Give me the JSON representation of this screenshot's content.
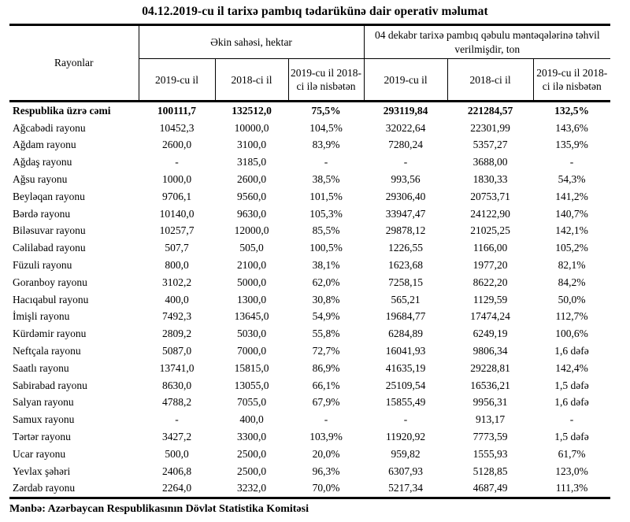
{
  "title": "04.12.2019-cu il tarixə pambıq tədarükünə dair operativ məlumat",
  "source_note": "Mənbə: Azərbaycan Respublikasının Dövlət Statistika Komitəsi",
  "colors": {
    "text": "#000000",
    "background": "#ffffff",
    "border": "#000000"
  },
  "table": {
    "header": {
      "rayonlar": "Rayonlar",
      "group1": "Əkin sahəsi, hektar",
      "group2": "04 dekabr tarixə pambıq qəbulu məntəqələrinə təhvil verilmişdir, ton",
      "sub": [
        "2019-cu il",
        "2018-ci il",
        "2019-cu il 2018-ci ilə nisbətən",
        "2019-cu il",
        "2018-ci il",
        "2019-cu il 2018-ci ilə nisbətən"
      ]
    },
    "rows": [
      {
        "name": "Respublika üzrə cəmi",
        "bold": true,
        "values": [
          "100111,7",
          "132512,0",
          "75,5%",
          "293119,84",
          "221284,57",
          "132,5%"
        ]
      },
      {
        "name": "Ağcabədi rayonu",
        "bold": false,
        "values": [
          "10452,3",
          "10000,0",
          "104,5%",
          "32022,64",
          "22301,99",
          "143,6%"
        ]
      },
      {
        "name": "Ağdam rayonu",
        "bold": false,
        "values": [
          "2600,0",
          "3100,0",
          "83,9%",
          "7280,24",
          "5357,27",
          "135,9%"
        ]
      },
      {
        "name": "Ağdaş rayonu",
        "bold": false,
        "values": [
          "-",
          "3185,0",
          "-",
          "-",
          "3688,00",
          "-"
        ]
      },
      {
        "name": "Ağsu rayonu",
        "bold": false,
        "values": [
          "1000,0",
          "2600,0",
          "38,5%",
          "993,56",
          "1830,33",
          "54,3%"
        ]
      },
      {
        "name": "Beyləqan rayonu",
        "bold": false,
        "values": [
          "9706,1",
          "9560,0",
          "101,5%",
          "29306,40",
          "20753,71",
          "141,2%"
        ]
      },
      {
        "name": "Bərdə rayonu",
        "bold": false,
        "values": [
          "10140,0",
          "9630,0",
          "105,3%",
          "33947,47",
          "24122,90",
          "140,7%"
        ]
      },
      {
        "name": "Biləsuvar rayonu",
        "bold": false,
        "values": [
          "10257,7",
          "12000,0",
          "85,5%",
          "29878,12",
          "21025,25",
          "142,1%"
        ]
      },
      {
        "name": "Cəlilabad rayonu",
        "bold": false,
        "values": [
          "507,7",
          "505,0",
          "100,5%",
          "1226,55",
          "1166,00",
          "105,2%"
        ]
      },
      {
        "name": "Füzuli rayonu",
        "bold": false,
        "values": [
          "800,0",
          "2100,0",
          "38,1%",
          "1623,68",
          "1977,20",
          "82,1%"
        ]
      },
      {
        "name": "Goranboy rayonu",
        "bold": false,
        "values": [
          "3102,2",
          "5000,0",
          "62,0%",
          "7258,15",
          "8622,20",
          "84,2%"
        ]
      },
      {
        "name": "Hacıqabul rayonu",
        "bold": false,
        "values": [
          "400,0",
          "1300,0",
          "30,8%",
          "565,21",
          "1129,59",
          "50,0%"
        ]
      },
      {
        "name": "İmişli rayonu",
        "bold": false,
        "values": [
          "7492,3",
          "13645,0",
          "54,9%",
          "19684,77",
          "17474,24",
          "112,7%"
        ]
      },
      {
        "name": "Kürdəmir rayonu",
        "bold": false,
        "values": [
          "2809,2",
          "5030,0",
          "55,8%",
          "6284,89",
          "6249,19",
          "100,6%"
        ]
      },
      {
        "name": "Neftçala rayonu",
        "bold": false,
        "values": [
          "5087,0",
          "7000,0",
          "72,7%",
          "16041,93",
          "9806,34",
          "1,6 dəfə"
        ]
      },
      {
        "name": "Saatlı rayonu",
        "bold": false,
        "values": [
          "13741,0",
          "15815,0",
          "86,9%",
          "41635,19",
          "29228,81",
          "142,4%"
        ]
      },
      {
        "name": "Sabirabad rayonu",
        "bold": false,
        "values": [
          "8630,0",
          "13055,0",
          "66,1%",
          "25109,54",
          "16536,21",
          "1,5 dəfə"
        ]
      },
      {
        "name": "Salyan rayonu",
        "bold": false,
        "values": [
          "4788,2",
          "7055,0",
          "67,9%",
          "15855,49",
          "9956,31",
          "1,6 dəfə"
        ]
      },
      {
        "name": "Samux rayonu",
        "bold": false,
        "values": [
          "-",
          "400,0",
          "-",
          "-",
          "913,17",
          "-"
        ]
      },
      {
        "name": "Tərtər rayonu",
        "bold": false,
        "values": [
          "3427,2",
          "3300,0",
          "103,9%",
          "11920,92",
          "7773,59",
          "1,5 dəfə"
        ]
      },
      {
        "name": "Ucar rayonu",
        "bold": false,
        "values": [
          "500,0",
          "2500,0",
          "20,0%",
          "959,82",
          "1555,93",
          "61,7%"
        ]
      },
      {
        "name": "Yevlax şəhəri",
        "bold": false,
        "values": [
          "2406,8",
          "2500,0",
          "96,3%",
          "6307,93",
          "5128,85",
          "123,0%"
        ]
      },
      {
        "name": "Zərdab rayonu",
        "bold": false,
        "values": [
          "2264,0",
          "3232,0",
          "70,0%",
          "5217,34",
          "4687,49",
          "111,3%"
        ]
      }
    ]
  }
}
